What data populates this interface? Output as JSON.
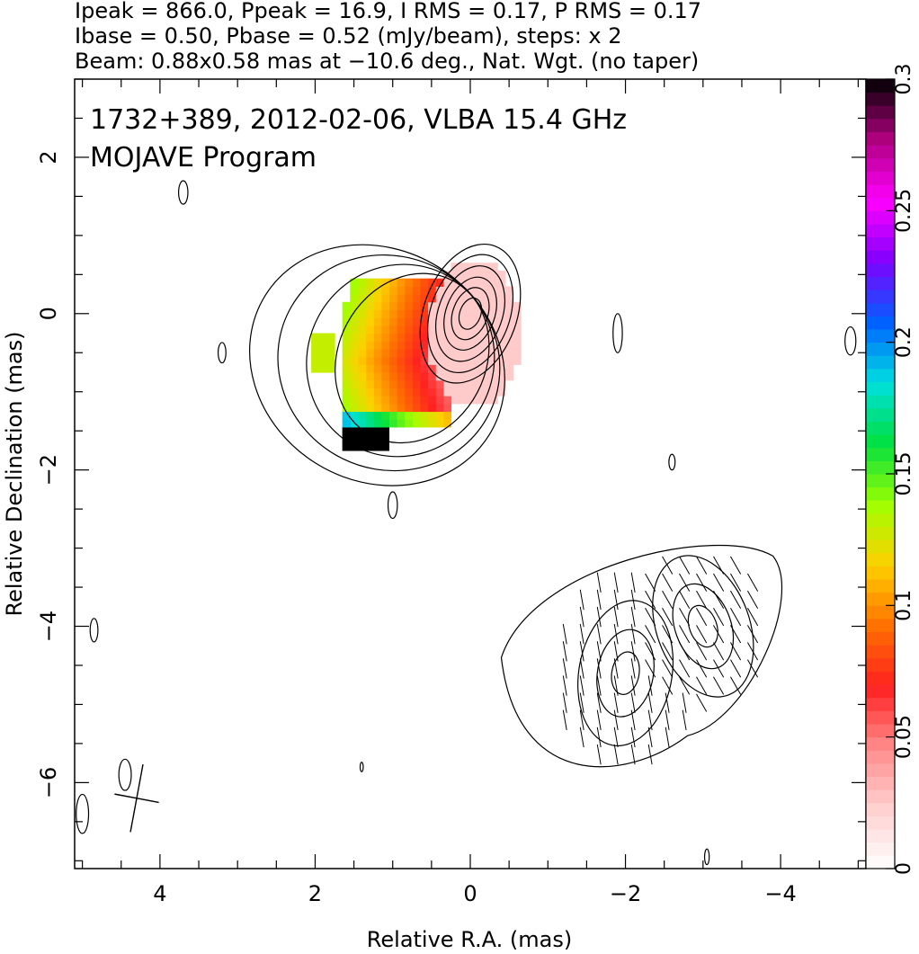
{
  "header": {
    "line1": "Ipeak = 866.0, Ppeak = 16.9, I RMS = 0.17, P RMS = 0.17",
    "line2": "Ibase = 0.50, Pbase = 0.52 (mJy/beam), steps: x 2",
    "line3": "Beam: 0.88x0.58 mas at −10.6 deg., Nat. Wgt. (no taper)"
  },
  "chart_data": {
    "type": "heatmap",
    "title": "1732+389, 2012-02-06, VLBA 15.4 GHz",
    "subtitle": "MOJAVE Program",
    "xlabel": "Relative R.A. (mas)",
    "ylabel": "Relative Declination (mas)",
    "xlim": [
      5.1,
      -5.1
    ],
    "ylim": [
      -7.1,
      3.0
    ],
    "x_ticks": [
      {
        "v": 4,
        "label": "4"
      },
      {
        "v": 2,
        "label": "2"
      },
      {
        "v": 0,
        "label": "0"
      },
      {
        "v": -2,
        "label": "−2"
      },
      {
        "v": -4,
        "label": "−4"
      }
    ],
    "y_ticks": [
      {
        "v": 2,
        "label": "2"
      },
      {
        "v": 0,
        "label": "0"
      },
      {
        "v": -2,
        "label": "−2"
      },
      {
        "v": -4,
        "label": "−4"
      },
      {
        "v": -6,
        "label": "−6"
      }
    ],
    "colorbar": {
      "range": [
        0,
        0.3
      ],
      "ticks": [
        {
          "v": 0,
          "label": "0"
        },
        {
          "v": 0.05,
          "label": "0.05"
        },
        {
          "v": 0.1,
          "label": "0.1"
        },
        {
          "v": 0.15,
          "label": "0.15"
        },
        {
          "v": 0.2,
          "label": "0.2"
        },
        {
          "v": 0.25,
          "label": "0.25"
        },
        {
          "v": 0.3,
          "label": "0.3"
        }
      ],
      "colormap": [
        "#ffffff",
        "#ffd0d0",
        "#ff8a8a",
        "#ff2020",
        "#ff7000",
        "#ffd000",
        "#a0ff00",
        "#00e040",
        "#00e0e0",
        "#0060ff",
        "#8000ff",
        "#ff00ff",
        "#b00080",
        "#000000"
      ]
    },
    "core": {
      "x": 0.0,
      "y": 0.0,
      "peak_mJy_per_beam": 866.0
    },
    "beam": {
      "major_mas": 0.88,
      "minor_mas": 0.58,
      "pa_deg": -10.6
    },
    "components": [
      {
        "x": -2.0,
        "y": -4.6
      },
      {
        "x": -3.0,
        "y": -4.0
      }
    ]
  }
}
